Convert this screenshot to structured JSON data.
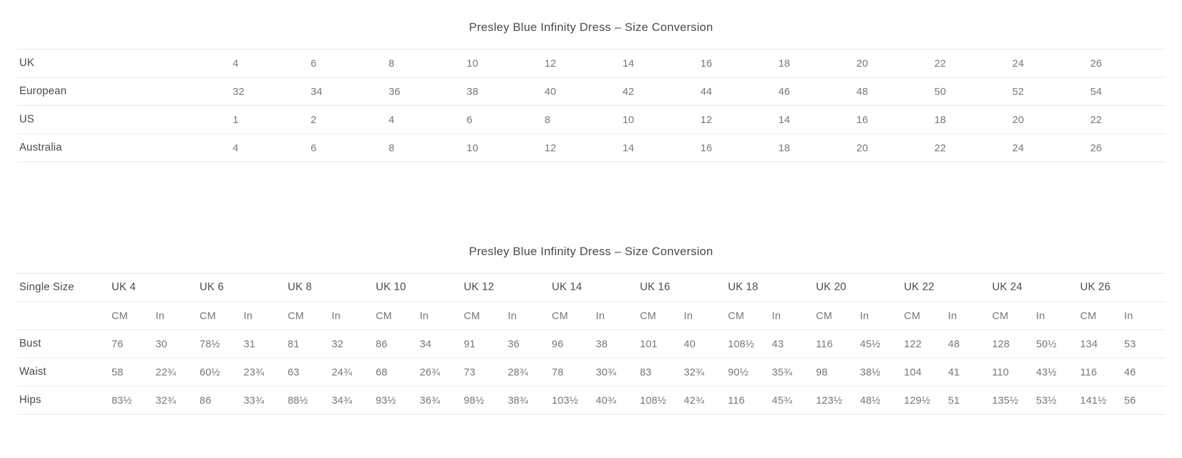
{
  "colors": {
    "background": "#ffffff",
    "title_text": "#484848",
    "label_text": "#4a4a4a",
    "value_text": "#767676",
    "divider": "#e9e9e9"
  },
  "table1": {
    "title": "Presley Blue Infinity Dress – Size Conversion",
    "rows": [
      {
        "label": "UK",
        "values": [
          "4",
          "6",
          "8",
          "10",
          "12",
          "14",
          "16",
          "18",
          "20",
          "22",
          "24",
          "26"
        ]
      },
      {
        "label": "European",
        "values": [
          "32",
          "34",
          "36",
          "38",
          "40",
          "42",
          "44",
          "46",
          "48",
          "50",
          "52",
          "54"
        ]
      },
      {
        "label": "US",
        "values": [
          "1",
          "2",
          "4",
          "6",
          "8",
          "10",
          "12",
          "14",
          "16",
          "18",
          "20",
          "22"
        ]
      },
      {
        "label": "Australia",
        "values": [
          "4",
          "6",
          "8",
          "10",
          "12",
          "14",
          "16",
          "18",
          "20",
          "22",
          "24",
          "26"
        ]
      }
    ]
  },
  "table2": {
    "title": "Presley Blue Infinity Dress – Size Conversion",
    "corner_label": "Single Size",
    "size_headers": [
      "UK 4",
      "UK 6",
      "UK 8",
      "UK 10",
      "UK 12",
      "UK 14",
      "UK 16",
      "UK 18",
      "UK 20",
      "UK 22",
      "UK 24",
      "UK 26"
    ],
    "unit_headers": {
      "cm": "CM",
      "in": "In"
    },
    "rows": [
      {
        "label": "Bust",
        "values": [
          "76",
          "30",
          "78½",
          "31",
          "81",
          "32",
          "86",
          "34",
          "91",
          "36",
          "96",
          "38",
          "101",
          "40",
          "108½",
          "43",
          "116",
          "45½",
          "122",
          "48",
          "128",
          "50½",
          "134",
          "53"
        ]
      },
      {
        "label": "Waist",
        "values": [
          "58",
          "22¾",
          "60½",
          "23¾",
          "63",
          "24¾",
          "68",
          "26¾",
          "73",
          "28¾",
          "78",
          "30¾",
          "83",
          "32¾",
          "90½",
          "35¾",
          "98",
          "38½",
          "104",
          "41",
          "110",
          "43½",
          "116",
          "46"
        ]
      },
      {
        "label": "Hips",
        "values": [
          "83½",
          "32¾",
          "86",
          "33¾",
          "88½",
          "34¾",
          "93½",
          "36¾",
          "98½",
          "38¾",
          "103½",
          "40¾",
          "108½",
          "42¾",
          "116",
          "45¾",
          "123½",
          "48½",
          "129½",
          "51",
          "135½",
          "53½",
          "141½",
          "56"
        ]
      }
    ]
  }
}
